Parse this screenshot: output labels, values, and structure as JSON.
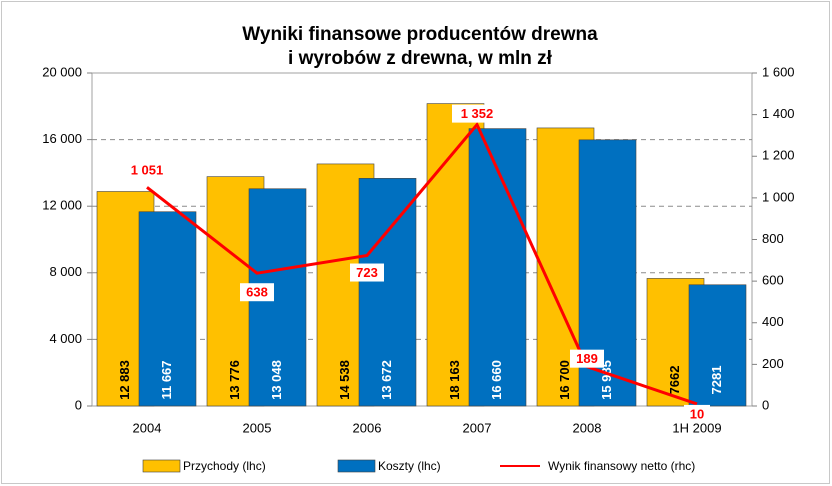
{
  "chart_data": {
    "type": "bar-line",
    "title": [
      "Wyniki finansowe producentów drewna",
      "i wyrobów z drewna, w mln zł"
    ],
    "categories": [
      "2004",
      "2005",
      "2006",
      "2007",
      "2008",
      "1H 2009"
    ],
    "series": [
      {
        "name": "Przychody (lhc)",
        "type": "bar",
        "color": "#ffc000",
        "values": [
          12883,
          13776,
          14538,
          18163,
          16700,
          7662
        ],
        "value_labels": [
          "12 883",
          "13 776",
          "14 538",
          "18 163",
          "16 700",
          "7662"
        ]
      },
      {
        "name": "Koszty (lhc)",
        "type": "bar",
        "color": "#0070c0",
        "values": [
          11667,
          13048,
          13672,
          16660,
          15985,
          7281
        ],
        "value_labels": [
          "11 667",
          "13 048",
          "13 672",
          "16 660",
          "15 985",
          "7281"
        ]
      },
      {
        "name": "Wynik finansowy netto (rhc)",
        "type": "line",
        "axis": "y2",
        "color": "#ff0000",
        "values": [
          1051,
          638,
          723,
          1352,
          189,
          10
        ],
        "value_labels": [
          "1 051",
          "638",
          "723",
          "1 352",
          "189",
          "10"
        ]
      }
    ],
    "ylim": [
      0,
      20000
    ],
    "yticks": [
      0,
      {
        "value": 4000,
        "label": "4 000"
      },
      {
        "value": 8000,
        "label": "8 000"
      },
      {
        "value": 12000,
        "label": "12 000"
      },
      {
        "value": 16000,
        "label": "16 000"
      },
      {
        "value": 20000,
        "label": "20 000"
      }
    ],
    "y2lim": [
      0,
      1600
    ],
    "y2ticks": [
      0,
      200,
      400,
      600,
      800,
      {
        "value": 1000,
        "label": "1 000"
      },
      {
        "value": 1200,
        "label": "1 200"
      },
      {
        "value": 1400,
        "label": "1 400"
      },
      {
        "value": 1600,
        "label": "1 600"
      }
    ],
    "grid": true,
    "legend": "bottom"
  }
}
